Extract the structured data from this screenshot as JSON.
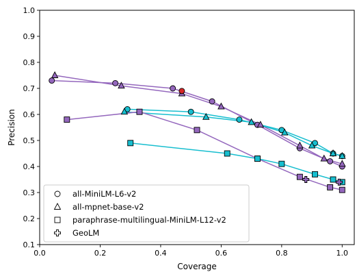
{
  "chart_data": {
    "type": "line",
    "xlabel": "Coverage",
    "ylabel": "Precision",
    "xlim": [
      0.0,
      1.04
    ],
    "ylim": [
      0.1,
      1.0
    ],
    "xticks": [
      0.0,
      0.2,
      0.4,
      0.6,
      0.8,
      1.0
    ],
    "xtick_labels": [
      "0.0",
      "0.2",
      "0.4",
      "0.6",
      "0.8",
      "1.0"
    ],
    "yticks": [
      0.1,
      0.2,
      0.3,
      0.4,
      0.5,
      0.6,
      0.7,
      0.8,
      0.9,
      1.0
    ],
    "ytick_labels": [
      "0.1",
      "0.2",
      "0.3",
      "0.4",
      "0.5",
      "0.6",
      "0.7",
      "0.8",
      "0.9",
      "1.0"
    ],
    "legend_position": "lower-left",
    "legend": [
      {
        "label": "all-MiniLM-L6-v2",
        "marker": "circle"
      },
      {
        "label": "all-mpnet-base-v2",
        "marker": "triangle"
      },
      {
        "label": "paraphrase-multilingual-MiniLM-L12-v2",
        "marker": "square"
      },
      {
        "label": "GeoLM",
        "marker": "plus"
      }
    ],
    "colors": {
      "purple": "#9467bd",
      "cyan": "#17becf",
      "red": "#d62728"
    },
    "series": [
      {
        "marker": "circle",
        "color": "#9467bd",
        "points": [
          [
            0.04,
            0.73
          ],
          [
            0.25,
            0.72
          ],
          [
            0.44,
            0.7
          ],
          [
            0.57,
            0.65
          ],
          [
            0.72,
            0.56
          ],
          [
            0.86,
            0.47
          ],
          [
            0.96,
            0.42
          ],
          [
            1.0,
            0.4
          ]
        ]
      },
      {
        "marker": "circle",
        "color": "#17becf",
        "points": [
          [
            0.29,
            0.62
          ],
          [
            0.5,
            0.61
          ],
          [
            0.66,
            0.58
          ],
          [
            0.8,
            0.54
          ],
          [
            0.91,
            0.49
          ],
          [
            0.97,
            0.45
          ],
          [
            1.0,
            0.44
          ]
        ]
      },
      {
        "marker": "triangle",
        "color": "#9467bd",
        "points": [
          [
            0.05,
            0.75
          ],
          [
            0.27,
            0.71
          ],
          [
            0.47,
            0.68
          ],
          [
            0.6,
            0.63
          ],
          [
            0.73,
            0.56
          ],
          [
            0.86,
            0.48
          ],
          [
            0.94,
            0.43
          ],
          [
            1.0,
            0.41
          ]
        ]
      },
      {
        "marker": "triangle",
        "color": "#17becf",
        "points": [
          [
            0.28,
            0.61
          ],
          [
            0.55,
            0.59
          ],
          [
            0.7,
            0.57
          ],
          [
            0.81,
            0.53
          ],
          [
            0.9,
            0.48
          ],
          [
            0.97,
            0.45
          ],
          [
            1.0,
            0.44
          ]
        ]
      },
      {
        "marker": "square",
        "color": "#9467bd",
        "points": [
          [
            0.09,
            0.58
          ],
          [
            0.33,
            0.61
          ],
          [
            0.52,
            0.54
          ],
          [
            0.72,
            0.43
          ],
          [
            0.86,
            0.36
          ],
          [
            0.96,
            0.32
          ],
          [
            1.0,
            0.31
          ]
        ]
      },
      {
        "marker": "square",
        "color": "#17becf",
        "points": [
          [
            0.3,
            0.49
          ],
          [
            0.62,
            0.45
          ],
          [
            0.72,
            0.43
          ],
          [
            0.8,
            0.41
          ],
          [
            0.91,
            0.37
          ],
          [
            0.97,
            0.35
          ],
          [
            1.0,
            0.34
          ]
        ]
      },
      {
        "marker": "plus",
        "color": "#9467bd",
        "points": [
          [
            0.88,
            0.35
          ],
          [
            0.99,
            0.34
          ]
        ],
        "connected": false
      }
    ],
    "highlight_points": [
      {
        "marker": "circle",
        "color": "#d62728",
        "point": [
          0.47,
          0.69
        ]
      }
    ]
  }
}
